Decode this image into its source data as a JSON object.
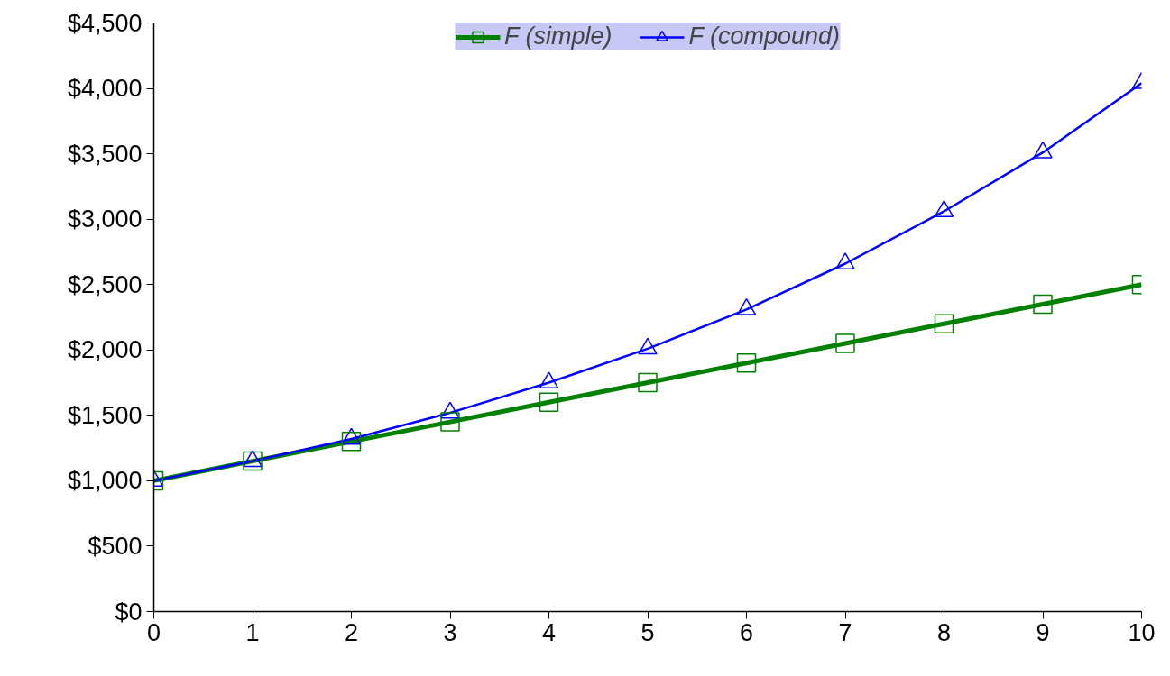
{
  "chart_data": {
    "type": "line",
    "xlim": [
      0,
      10
    ],
    "ylim": [
      0,
      4500
    ],
    "x": [
      0,
      1,
      2,
      3,
      4,
      5,
      6,
      7,
      8,
      9,
      10
    ],
    "xticks": [
      0,
      1,
      2,
      3,
      4,
      5,
      6,
      7,
      8,
      9,
      10
    ],
    "yticks": [
      {
        "value": 0,
        "label": "$0"
      },
      {
        "value": 500,
        "label": "$500"
      },
      {
        "value": 1000,
        "label": "$1,000"
      },
      {
        "value": 1500,
        "label": "$1,500"
      },
      {
        "value": 2000,
        "label": "$2,000"
      },
      {
        "value": 2500,
        "label": "$2,500"
      },
      {
        "value": 3000,
        "label": "$3,000"
      },
      {
        "value": 3500,
        "label": "$3,500"
      },
      {
        "value": 4000,
        "label": "$4,000"
      },
      {
        "value": 4500,
        "label": "$4,500"
      }
    ],
    "series": [
      {
        "name": "F (simple)",
        "color": "#008000",
        "marker": "square",
        "values": [
          1000,
          1150,
          1300,
          1450,
          1600,
          1750,
          1900,
          2050,
          2200,
          2350,
          2500
        ]
      },
      {
        "name": "F (compound)",
        "color": "#0000ff",
        "marker": "triangle",
        "values": [
          1000,
          1150,
          1320,
          1520,
          1750,
          2010,
          2310,
          2660,
          3060,
          3510,
          4040
        ]
      }
    ],
    "grid": false,
    "legend": "top",
    "line_style": "solid"
  }
}
